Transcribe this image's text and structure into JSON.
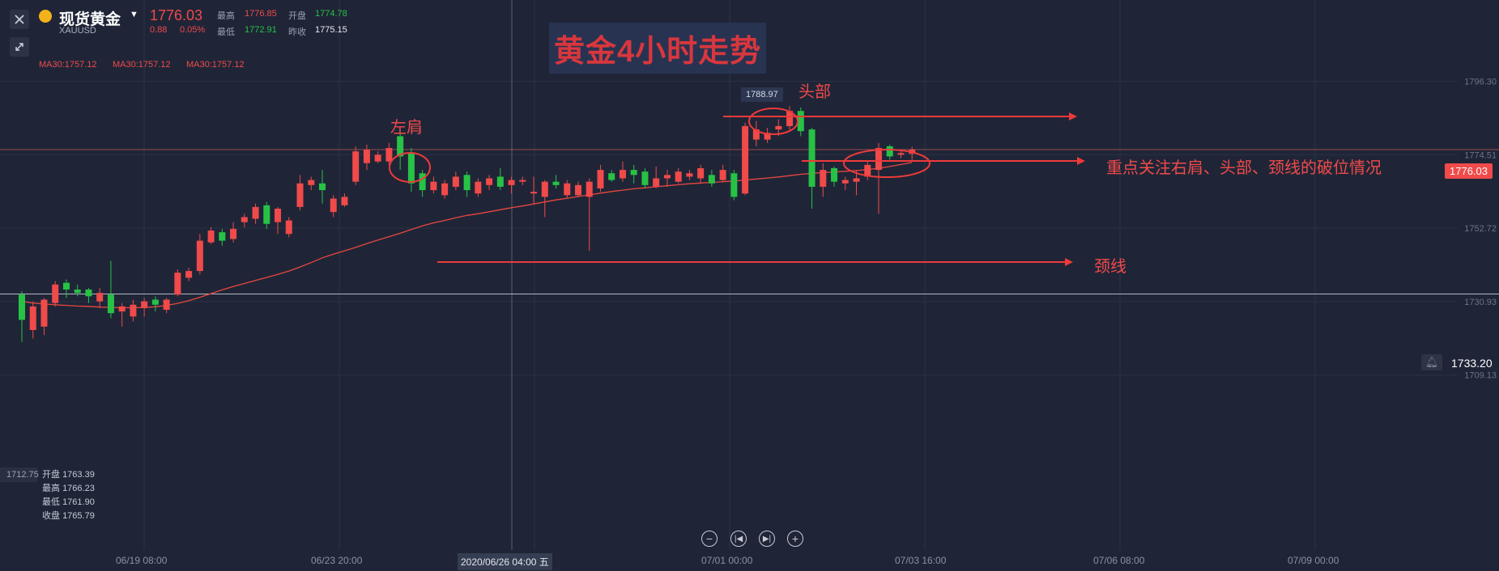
{
  "header": {
    "name": "现货黄金",
    "symbol": "XAUUSD",
    "price": "1776.03",
    "change": "0.88",
    "change_pct": "0.05%",
    "high_label": "最高",
    "high": "1776.85",
    "open_label": "开盘",
    "open": "1774.78",
    "low_label": "最低",
    "low": "1772.91",
    "prev_close_label": "昨收",
    "prev_close": "1775.15"
  },
  "ma_labels": [
    "MA30:1757.12",
    "MA30:1757.12",
    "MA30:1757.12"
  ],
  "title": "黄金4小时走势",
  "annotations": {
    "left_shoulder": "左肩",
    "head": "头部",
    "focus": "重点关注右肩、头部、颈线的破位情况",
    "neckline": "颈线"
  },
  "ohlc_panel": {
    "partial_left": "712.75",
    "open_label": "开盘",
    "open": "1763.39",
    "high_label": "最高",
    "high": "1766.23",
    "low_label": "最低",
    "low": "1761.90",
    "close_label": "收盘",
    "close": "1765.79"
  },
  "price_axis": {
    "current_tag": "1776.03",
    "crosshair_tag": "1733.20",
    "peak_tag": "1788.97"
  },
  "time_axis": {
    "crosshair_time": "2020/06/26 04:00 五"
  },
  "colors": {
    "up": "#f04a4a",
    "down": "#27c245",
    "ma": "#e8473f",
    "background": "#1f2537"
  },
  "chart_data": {
    "type": "candlestick",
    "ylim": [
      1700,
      1800
    ],
    "y_ticks": [
      1796.3,
      1774.51,
      1752.72,
      1730.93,
      1709.13
    ],
    "x_ticks": [
      "06/19 08:00",
      "06/23 20:00",
      "07/01 00:00",
      "07/03 16:00",
      "07/06 08:00",
      "07/09 00:00"
    ],
    "grid": true,
    "candles": [
      {
        "o": 1733.0,
        "c": 1725.5,
        "h": 1734.0,
        "l": 1719.0
      },
      {
        "o": 1722.5,
        "c": 1729.5,
        "h": 1731.0,
        "l": 1720.0
      },
      {
        "o": 1723.5,
        "c": 1731.5,
        "h": 1732.0,
        "l": 1721.0
      },
      {
        "o": 1730.5,
        "c": 1736.0,
        "h": 1737.0,
        "l": 1729.5
      },
      {
        "o": 1736.5,
        "c": 1734.5,
        "h": 1737.5,
        "l": 1732.0
      },
      {
        "o": 1734.5,
        "c": 1733.5,
        "h": 1736.0,
        "l": 1732.5
      },
      {
        "o": 1734.5,
        "c": 1732.5,
        "h": 1735.0,
        "l": 1730.5
      },
      {
        "o": 1731.0,
        "c": 1733.5,
        "h": 1735.0,
        "l": 1729.0
      },
      {
        "o": 1733.0,
        "c": 1727.5,
        "h": 1743.0,
        "l": 1726.0
      },
      {
        "o": 1728.0,
        "c": 1729.5,
        "h": 1730.5,
        "l": 1723.5
      },
      {
        "o": 1726.5,
        "c": 1730.0,
        "h": 1731.5,
        "l": 1725.0
      },
      {
        "o": 1729.0,
        "c": 1731.0,
        "h": 1732.0,
        "l": 1726.5
      },
      {
        "o": 1731.5,
        "c": 1730.0,
        "h": 1732.5,
        "l": 1728.0
      },
      {
        "o": 1728.5,
        "c": 1731.5,
        "h": 1732.0,
        "l": 1727.5
      },
      {
        "o": 1733.0,
        "c": 1739.5,
        "h": 1740.5,
        "l": 1732.5
      },
      {
        "o": 1738.0,
        "c": 1740.0,
        "h": 1741.0,
        "l": 1737.0
      },
      {
        "o": 1740.0,
        "c": 1749.0,
        "h": 1751.0,
        "l": 1739.0
      },
      {
        "o": 1748.5,
        "c": 1752.0,
        "h": 1753.0,
        "l": 1748.0
      },
      {
        "o": 1751.5,
        "c": 1749.0,
        "h": 1752.5,
        "l": 1747.5
      },
      {
        "o": 1749.5,
        "c": 1752.5,
        "h": 1754.5,
        "l": 1748.5
      },
      {
        "o": 1754.5,
        "c": 1756.0,
        "h": 1757.0,
        "l": 1753.0
      },
      {
        "o": 1755.5,
        "c": 1759.0,
        "h": 1760.0,
        "l": 1754.0
      },
      {
        "o": 1759.5,
        "c": 1754.0,
        "h": 1760.5,
        "l": 1752.5
      },
      {
        "o": 1754.5,
        "c": 1758.5,
        "h": 1759.0,
        "l": 1751.0
      },
      {
        "o": 1751.0,
        "c": 1755.0,
        "h": 1756.0,
        "l": 1750.0
      },
      {
        "o": 1759.0,
        "c": 1766.0,
        "h": 1768.5,
        "l": 1758.0
      },
      {
        "o": 1765.5,
        "c": 1767.0,
        "h": 1768.0,
        "l": 1764.0
      },
      {
        "o": 1766.0,
        "c": 1764.0,
        "h": 1770.0,
        "l": 1760.0
      },
      {
        "o": 1757.5,
        "c": 1761.5,
        "h": 1762.5,
        "l": 1756.0
      },
      {
        "o": 1759.5,
        "c": 1762.0,
        "h": 1763.0,
        "l": 1759.0
      },
      {
        "o": 1766.5,
        "c": 1775.5,
        "h": 1777.0,
        "l": 1765.5
      },
      {
        "o": 1772.0,
        "c": 1776.0,
        "h": 1777.5,
        "l": 1770.0
      },
      {
        "o": 1772.5,
        "c": 1774.5,
        "h": 1775.5,
        "l": 1772.0
      },
      {
        "o": 1772.5,
        "c": 1776.5,
        "h": 1778.0,
        "l": 1771.5
      },
      {
        "o": 1780.0,
        "c": 1774.0,
        "h": 1781.0,
        "l": 1770.0
      },
      {
        "o": 1775.0,
        "c": 1766.0,
        "h": 1776.5,
        "l": 1763.5
      },
      {
        "o": 1769.0,
        "c": 1764.0,
        "h": 1770.0,
        "l": 1762.0
      },
      {
        "o": 1764.0,
        "c": 1766.5,
        "h": 1768.0,
        "l": 1763.0
      },
      {
        "o": 1762.5,
        "c": 1766.0,
        "h": 1767.0,
        "l": 1761.5
      },
      {
        "o": 1765.0,
        "c": 1768.0,
        "h": 1769.5,
        "l": 1764.0
      },
      {
        "o": 1768.5,
        "c": 1764.0,
        "h": 1769.5,
        "l": 1762.0
      },
      {
        "o": 1763.0,
        "c": 1766.5,
        "h": 1767.5,
        "l": 1762.0
      },
      {
        "o": 1765.5,
        "c": 1767.5,
        "h": 1768.5,
        "l": 1764.0
      },
      {
        "o": 1768.0,
        "c": 1765.0,
        "h": 1770.5,
        "l": 1764.0
      },
      {
        "o": 1765.5,
        "c": 1767.0,
        "h": 1768.0,
        "l": 1763.0
      },
      {
        "o": 1766.5,
        "c": 1767.0,
        "h": 1768.0,
        "l": 1765.5
      },
      {
        "o": 1763.0,
        "c": 1763.5,
        "h": 1768.0,
        "l": 1760.0
      },
      {
        "o": 1762.0,
        "c": 1766.5,
        "h": 1767.0,
        "l": 1756.0
      },
      {
        "o": 1766.5,
        "c": 1765.5,
        "h": 1768.5,
        "l": 1764.5
      },
      {
        "o": 1762.5,
        "c": 1766.0,
        "h": 1767.0,
        "l": 1761.5
      },
      {
        "o": 1762.5,
        "c": 1765.5,
        "h": 1766.5,
        "l": 1762.0
      },
      {
        "o": 1762.0,
        "c": 1766.5,
        "h": 1767.5,
        "l": 1746.0
      },
      {
        "o": 1764.5,
        "c": 1770.0,
        "h": 1771.5,
        "l": 1763.5
      },
      {
        "o": 1769.0,
        "c": 1767.0,
        "h": 1770.0,
        "l": 1766.5
      },
      {
        "o": 1767.5,
        "c": 1770.0,
        "h": 1772.5,
        "l": 1766.5
      },
      {
        "o": 1770.0,
        "c": 1768.5,
        "h": 1771.5,
        "l": 1766.0
      },
      {
        "o": 1769.5,
        "c": 1765.5,
        "h": 1770.5,
        "l": 1764.5
      },
      {
        "o": 1765.0,
        "c": 1767.5,
        "h": 1771.0,
        "l": 1764.5
      },
      {
        "o": 1767.5,
        "c": 1768.5,
        "h": 1770.0,
        "l": 1765.0
      },
      {
        "o": 1766.5,
        "c": 1769.5,
        "h": 1770.5,
        "l": 1766.0
      },
      {
        "o": 1768.0,
        "c": 1769.0,
        "h": 1770.0,
        "l": 1767.0
      },
      {
        "o": 1767.5,
        "c": 1770.5,
        "h": 1771.5,
        "l": 1766.0
      },
      {
        "o": 1768.5,
        "c": 1766.0,
        "h": 1770.0,
        "l": 1765.0
      },
      {
        "o": 1767.0,
        "c": 1770.0,
        "h": 1771.5,
        "l": 1766.5
      },
      {
        "o": 1769.0,
        "c": 1762.0,
        "h": 1770.0,
        "l": 1761.0
      },
      {
        "o": 1763.0,
        "c": 1783.0,
        "h": 1784.0,
        "l": 1762.5
      },
      {
        "o": 1779.0,
        "c": 1782.0,
        "h": 1784.5,
        "l": 1777.0
      },
      {
        "o": 1779.0,
        "c": 1781.0,
        "h": 1782.5,
        "l": 1778.0
      },
      {
        "o": 1782.0,
        "c": 1783.0,
        "h": 1785.0,
        "l": 1780.0
      },
      {
        "o": 1783.0,
        "c": 1787.5,
        "h": 1788.97,
        "l": 1781.5
      },
      {
        "o": 1787.5,
        "c": 1781.5,
        "h": 1788.5,
        "l": 1780.0
      },
      {
        "o": 1782.0,
        "c": 1765.0,
        "h": 1782.5,
        "l": 1758.5
      },
      {
        "o": 1765.0,
        "c": 1770.0,
        "h": 1772.0,
        "l": 1762.0
      },
      {
        "o": 1770.5,
        "c": 1766.5,
        "h": 1771.0,
        "l": 1765.0
      },
      {
        "o": 1766.0,
        "c": 1767.0,
        "h": 1768.0,
        "l": 1764.0
      },
      {
        "o": 1766.5,
        "c": 1767.5,
        "h": 1770.0,
        "l": 1762.5
      },
      {
        "o": 1768.0,
        "c": 1771.5,
        "h": 1772.5,
        "l": 1767.0
      },
      {
        "o": 1770.0,
        "c": 1776.5,
        "h": 1778.0,
        "l": 1757.0
      },
      {
        "o": 1777.0,
        "c": 1774.0,
        "h": 1777.5,
        "l": 1773.0
      },
      {
        "o": 1774.5,
        "c": 1775.0,
        "h": 1776.0,
        "l": 1773.5
      },
      {
        "o": 1774.78,
        "c": 1776.03,
        "h": 1776.85,
        "l": 1772.91
      }
    ],
    "ma30": [
      1731.0,
      1730.5,
      1730.2,
      1730.0,
      1729.8,
      1729.6,
      1729.5,
      1729.3,
      1729.2,
      1729.1,
      1729.1,
      1729.2,
      1729.4,
      1729.8,
      1730.4,
      1731.2,
      1732.2,
      1733.3,
      1734.4,
      1735.4,
      1736.3,
      1737.2,
      1738.1,
      1739.0,
      1740.0,
      1741.2,
      1742.5,
      1743.9,
      1745.0,
      1746.0,
      1747.0,
      1748.1,
      1749.2,
      1750.2,
      1751.2,
      1752.3,
      1753.4,
      1754.3,
      1755.0,
      1755.8,
      1756.5,
      1757.0,
      1757.6,
      1758.2,
      1758.8,
      1759.3,
      1759.9,
      1760.5,
      1761.1,
      1761.6,
      1762.1,
      1762.6,
      1763.1,
      1763.6,
      1764.0,
      1764.4,
      1764.7,
      1765.0,
      1765.3,
      1765.6,
      1765.9,
      1766.1,
      1766.3,
      1766.5,
      1766.7,
      1767.0,
      1767.3,
      1767.6,
      1767.9,
      1768.3,
      1768.7,
      1769.0,
      1769.2,
      1769.4,
      1769.6,
      1769.8,
      1770.1,
      1770.5,
      1771.0,
      1771.6,
      1772.2
    ]
  }
}
